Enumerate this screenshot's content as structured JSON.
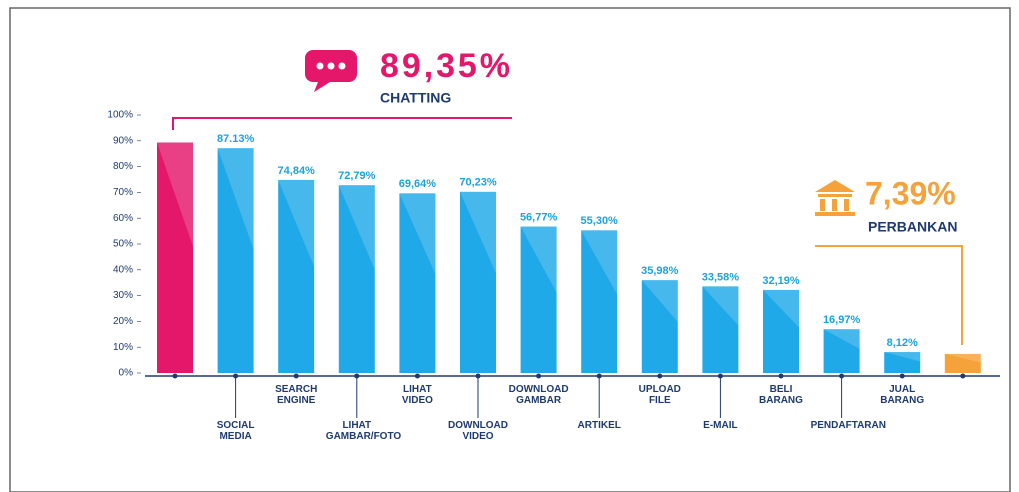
{
  "chart_data": {
    "type": "bar",
    "categories": [
      "CHATTING",
      "SOCIAL MEDIA",
      "SEARCH ENGINE",
      "LIHAT GAMBAR/FOTO",
      "LIHAT VIDEO",
      "DOWNLOAD VIDEO",
      "DOWNLOAD GAMBAR",
      "ARTIKEL",
      "UPLOAD FILE",
      "E-MAIL",
      "BELI BARANG",
      "PENDAFTARAN",
      "JUAL BARANG",
      "PERBANKAN"
    ],
    "values": [
      89.35,
      87.13,
      74.84,
      72.79,
      69.64,
      70.23,
      56.77,
      55.3,
      35.98,
      33.58,
      32.19,
      16.97,
      8.12,
      7.39
    ],
    "value_labels": [
      "89,35%",
      "87.13%",
      "74,84%",
      "72,79%",
      "69,64%",
      "70,23%",
      "56,77%",
      "55,30%",
      "35,98%",
      "33,58%",
      "32,19%",
      "16,97%",
      "8,12%",
      "7,39%"
    ],
    "colors": [
      "#e5176b",
      "#1fa9e8",
      "#1fa9e8",
      "#1fa9e8",
      "#1fa9e8",
      "#1fa9e8",
      "#1fa9e8",
      "#1fa9e8",
      "#1fa9e8",
      "#1fa9e8",
      "#1fa9e8",
      "#1fa9e8",
      "#1fa9e8",
      "#f5a23a"
    ],
    "ylim": [
      0,
      100
    ],
    "yticks": [
      {
        "value": 0,
        "label": "0%"
      },
      {
        "value": 10,
        "label": "10%"
      },
      {
        "value": 20,
        "label": "20%"
      },
      {
        "value": 30,
        "label": "30%"
      },
      {
        "value": 40,
        "label": "40%"
      },
      {
        "value": 50,
        "label": "50%"
      },
      {
        "value": 60,
        "label": "60%"
      },
      {
        "value": 70,
        "label": "70%"
      },
      {
        "value": 80,
        "label": "80%"
      },
      {
        "value": 90,
        "label": "90%"
      },
      {
        "value": 100,
        "label": "100%"
      }
    ]
  }
}
